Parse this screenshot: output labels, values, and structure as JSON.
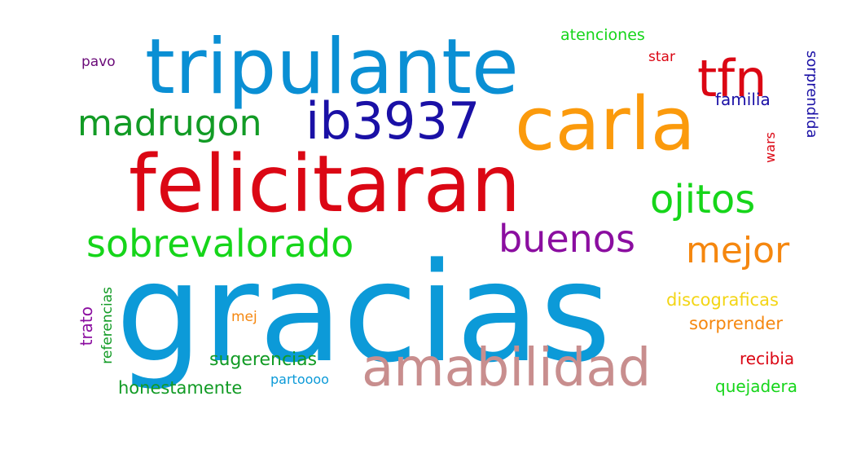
{
  "wordcloud": {
    "background_color": "#ffffff",
    "words": {
      "gracias": {
        "text": "gracias",
        "color": "#0c9ad8"
      },
      "tripulante": {
        "text": "tripulante",
        "color": "#0a8fd4"
      },
      "felicitaran": {
        "text": "felicitaran",
        "color": "#db0714"
      },
      "carla": {
        "text": "carla",
        "color": "#fb9a0c"
      },
      "amabilidad": {
        "text": "amabilidad",
        "color": "#c88e8e"
      },
      "ib3937": {
        "text": "ib3937",
        "color": "#1a10a6"
      },
      "tfn": {
        "text": "tfn",
        "color": "#db0714"
      },
      "sobrevalorado": {
        "text": "sobrevalorado",
        "color": "#16d51a"
      },
      "ojitos": {
        "text": "ojitos",
        "color": "#16d51a"
      },
      "madrugon": {
        "text": "madrugon",
        "color": "#129b25"
      },
      "buenos": {
        "text": "buenos",
        "color": "#8b0ea0"
      },
      "mejor": {
        "text": "mejor",
        "color": "#f5870f"
      },
      "sugerencias": {
        "text": "sugerencias",
        "color": "#129b25"
      },
      "honestamente": {
        "text": "honestamente",
        "color": "#129b25"
      },
      "discograficas": {
        "text": "discograficas",
        "color": "#f3d515"
      },
      "sorprender": {
        "text": "sorprender",
        "color": "#f5870f"
      },
      "recibia": {
        "text": "recibia",
        "color": "#db0714"
      },
      "quejadera": {
        "text": "quejadera",
        "color": "#16d51a"
      },
      "atenciones": {
        "text": "atenciones",
        "color": "#16d51a"
      },
      "familia": {
        "text": "familia",
        "color": "#1a10a6"
      },
      "star": {
        "text": "star",
        "color": "#db0714"
      },
      "pavo": {
        "text": "pavo",
        "color": "#6a0a78"
      },
      "mej": {
        "text": "mej",
        "color": "#f5870f"
      },
      "partoooo": {
        "text": "partoooo",
        "color": "#0c9ad8"
      },
      "sorprendida": {
        "text": "sorprendida",
        "color": "#1a10a6"
      },
      "wars": {
        "text": "wars",
        "color": "#db0714"
      },
      "trato": {
        "text": "trato",
        "color": "#8b0ea0"
      },
      "referencias": {
        "text": "referencias",
        "color": "#129b25"
      }
    }
  }
}
